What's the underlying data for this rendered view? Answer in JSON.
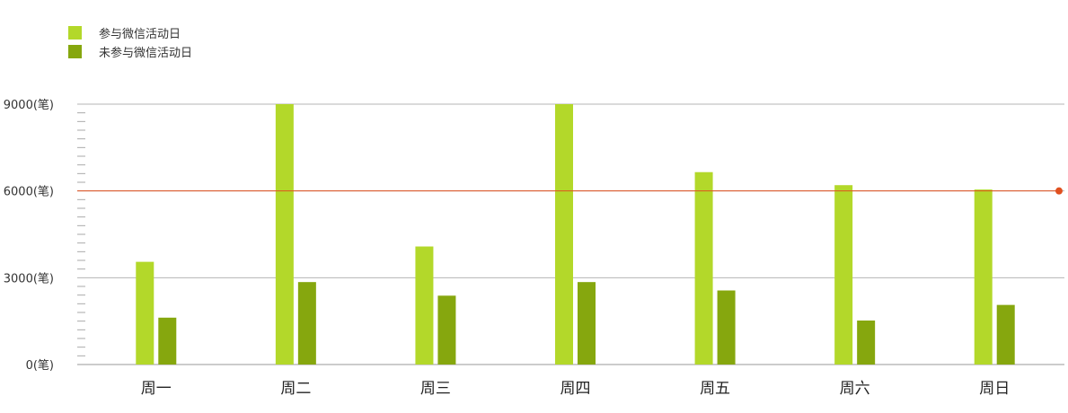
{
  "legend": [
    {
      "label": "参与微信活动日",
      "color": "#b3d82a"
    },
    {
      "label": "未参与微信活动日",
      "color": "#86a70e"
    }
  ],
  "chart_data": {
    "type": "bar",
    "categories": [
      "周一",
      "周二",
      "周三",
      "周四",
      "周五",
      "周六",
      "周日"
    ],
    "series": [
      {
        "name": "参与微信活动日",
        "color": "#b3d82a",
        "values": [
          3550,
          9000,
          4080,
          9000,
          6650,
          6200,
          6050
        ]
      },
      {
        "name": "未参与微信活动日",
        "color": "#86a70e",
        "values": [
          1620,
          2850,
          2380,
          2850,
          2560,
          1520,
          2060
        ]
      }
    ],
    "ylim": [
      0,
      9000
    ],
    "yticks": [
      {
        "value": 0,
        "label": "0(笔)"
      },
      {
        "value": 3000,
        "label": "3000(笔)"
      },
      {
        "value": 6000,
        "label": "6000(笔)"
      },
      {
        "value": 9000,
        "label": "9000(笔)"
      }
    ],
    "reference_line": {
      "value": 6000,
      "color": "#e0501f"
    },
    "grid": true,
    "legend_position": "top-left"
  }
}
